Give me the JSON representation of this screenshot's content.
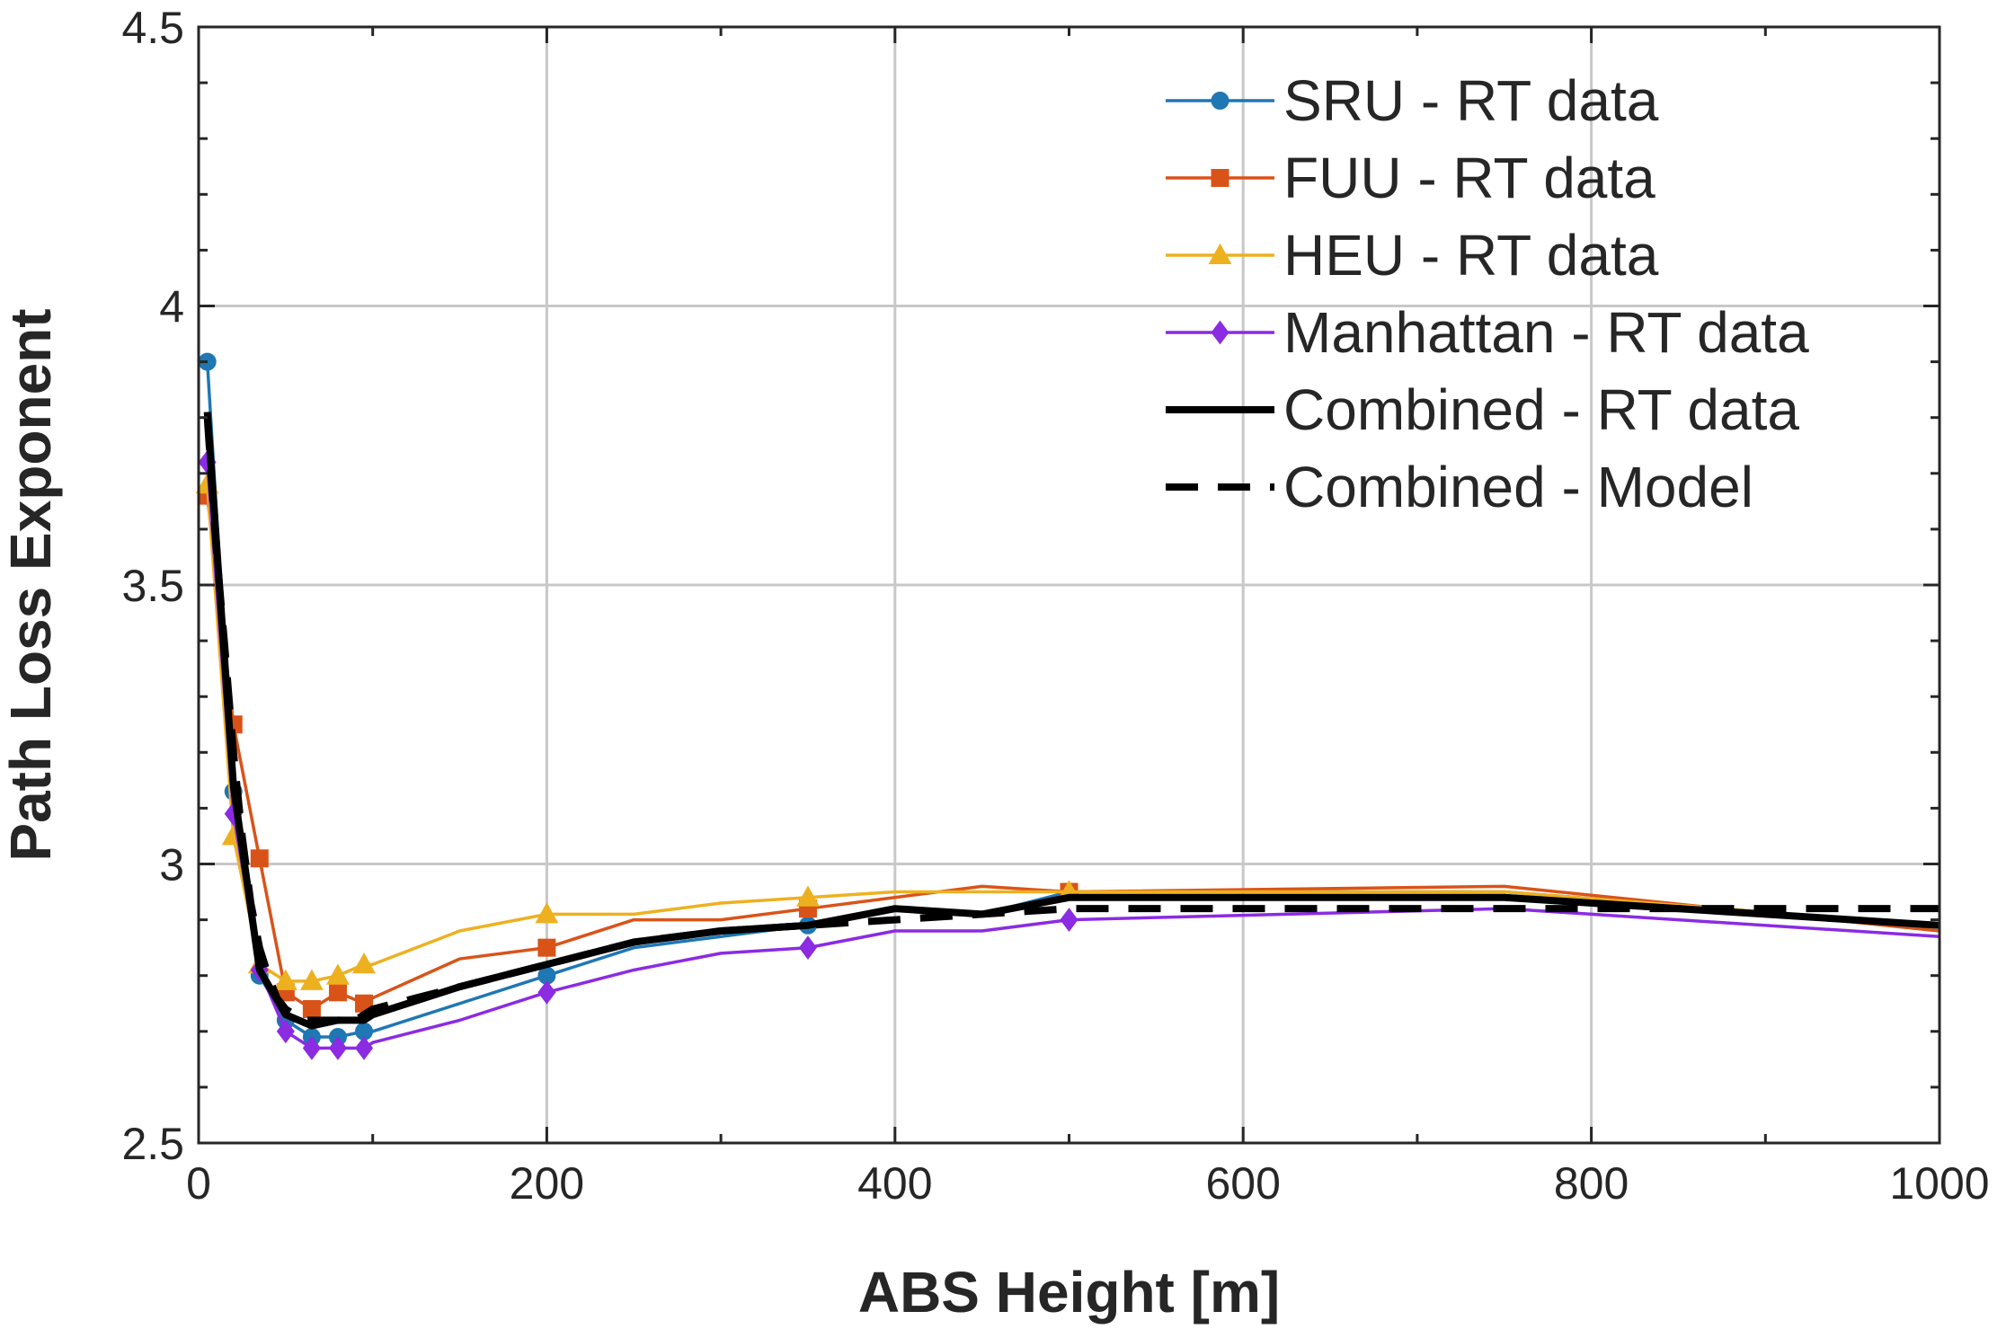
{
  "chart_data": {
    "type": "line",
    "xlabel": "ABS Height [m]",
    "ylabel": "Path Loss Exponent",
    "xlim": [
      0,
      1000
    ],
    "ylim": [
      2.5,
      4.5
    ],
    "xticks": [
      0,
      200,
      400,
      600,
      800,
      1000
    ],
    "yticks": [
      2.5,
      3,
      3.5,
      4,
      4.5
    ],
    "xtick_labels": [
      "0",
      "200",
      "400",
      "600",
      "800",
      "1000"
    ],
    "ytick_labels": [
      "2.5",
      "3",
      "3.5",
      "4",
      "4.5"
    ],
    "grid": true,
    "legend_position": "top-right",
    "series": [
      {
        "name": "SRU - RT data",
        "color": "#1f77b4",
        "marker": "circle",
        "x": [
          5,
          20,
          35,
          50,
          65,
          80,
          95,
          100,
          150,
          200,
          250,
          300,
          350,
          400,
          450,
          500,
          750,
          1000
        ],
        "y": [
          3.9,
          3.13,
          2.8,
          2.72,
          2.69,
          2.69,
          2.7,
          2.7,
          2.75,
          2.8,
          2.85,
          2.87,
          2.89,
          2.92,
          2.91,
          2.95,
          2.95,
          2.89
        ],
        "marker_x": [
          5,
          20,
          35,
          50,
          65,
          80,
          95,
          200,
          350,
          500
        ],
        "marker_y": [
          3.9,
          3.13,
          2.8,
          2.72,
          2.69,
          2.69,
          2.7,
          2.8,
          2.89,
          2.95
        ]
      },
      {
        "name": "FUU - RT data",
        "color": "#d95319",
        "marker": "square",
        "x": [
          5,
          20,
          35,
          50,
          65,
          80,
          95,
          100,
          150,
          200,
          250,
          300,
          350,
          400,
          450,
          500,
          750,
          1000
        ],
        "y": [
          3.66,
          3.25,
          3.01,
          2.77,
          2.74,
          2.77,
          2.75,
          2.76,
          2.83,
          2.85,
          2.9,
          2.9,
          2.92,
          2.94,
          2.96,
          2.95,
          2.96,
          2.88
        ],
        "marker_x": [
          5,
          20,
          35,
          50,
          65,
          80,
          95,
          200,
          350,
          500
        ],
        "marker_y": [
          3.66,
          3.25,
          3.01,
          2.77,
          2.74,
          2.77,
          2.75,
          2.85,
          2.92,
          2.95
        ]
      },
      {
        "name": "HEU - RT data",
        "color": "#edb120",
        "marker": "triangle",
        "x": [
          5,
          20,
          35,
          50,
          65,
          80,
          95,
          100,
          150,
          200,
          250,
          300,
          350,
          400,
          450,
          500,
          750,
          1000
        ],
        "y": [
          3.68,
          3.05,
          2.82,
          2.79,
          2.79,
          2.8,
          2.82,
          2.82,
          2.88,
          2.91,
          2.91,
          2.93,
          2.94,
          2.95,
          2.95,
          2.95,
          2.95,
          2.89
        ],
        "marker_x": [
          5,
          20,
          35,
          50,
          65,
          80,
          95,
          200,
          350,
          500
        ],
        "marker_y": [
          3.68,
          3.05,
          2.82,
          2.79,
          2.79,
          2.8,
          2.82,
          2.91,
          2.94,
          2.95
        ]
      },
      {
        "name": "Manhattan - RT data",
        "color": "#8b2be2",
        "marker": "diamond",
        "x": [
          5,
          20,
          35,
          50,
          65,
          80,
          95,
          100,
          150,
          200,
          250,
          300,
          350,
          400,
          450,
          500,
          750,
          1000
        ],
        "y": [
          3.72,
          3.09,
          2.81,
          2.7,
          2.67,
          2.67,
          2.67,
          2.68,
          2.72,
          2.77,
          2.81,
          2.84,
          2.85,
          2.88,
          2.88,
          2.9,
          2.92,
          2.87
        ],
        "marker_x": [
          5,
          20,
          35,
          50,
          65,
          80,
          95,
          200,
          350,
          500
        ],
        "marker_y": [
          3.72,
          3.09,
          2.81,
          2.7,
          2.67,
          2.67,
          2.67,
          2.77,
          2.85,
          2.9
        ]
      },
      {
        "name": "Combined - RT data",
        "color": "#000000",
        "marker": "none",
        "line_style": "solid",
        "x": [
          5,
          20,
          35,
          50,
          65,
          80,
          95,
          100,
          150,
          200,
          250,
          300,
          350,
          400,
          450,
          500,
          750,
          1000
        ],
        "y": [
          3.81,
          3.14,
          2.81,
          2.73,
          2.71,
          2.72,
          2.72,
          2.73,
          2.78,
          2.82,
          2.86,
          2.88,
          2.89,
          2.92,
          2.91,
          2.94,
          2.94,
          2.89
        ]
      },
      {
        "name": "Combined - Model",
        "color": "#000000",
        "marker": "none",
        "line_style": "dashed",
        "x": [
          5,
          10,
          15,
          20,
          25,
          30,
          35,
          40,
          45,
          50,
          55,
          60,
          65,
          70,
          75,
          80,
          85,
          90,
          95,
          100,
          125,
          150,
          175,
          200,
          250,
          300,
          350,
          400,
          450,
          500,
          600,
          700,
          750,
          800,
          900,
          1000
        ],
        "y": [
          3.8,
          3.57,
          3.39,
          3.2,
          3.05,
          2.93,
          2.85,
          2.8,
          2.76,
          2.74,
          2.73,
          2.72,
          2.72,
          2.72,
          2.72,
          2.72,
          2.72,
          2.72,
          2.73,
          2.74,
          2.76,
          2.78,
          2.8,
          2.82,
          2.86,
          2.88,
          2.89,
          2.9,
          2.91,
          2.92,
          2.92,
          2.92,
          2.92,
          2.92,
          2.92,
          2.92
        ]
      }
    ]
  }
}
